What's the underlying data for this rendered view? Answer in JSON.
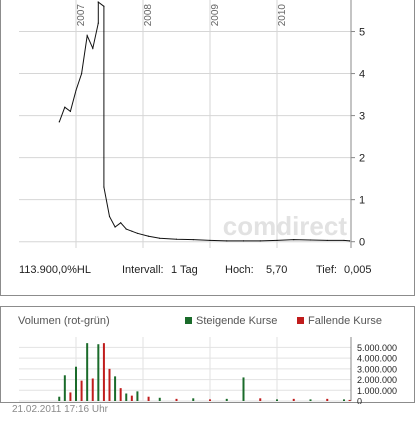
{
  "chart_data": [
    {
      "type": "line",
      "name": "price",
      "x_tick_labels": [
        "2007",
        "2008",
        "2009",
        "2010"
      ],
      "y_ticks": [
        0,
        1,
        2,
        3,
        4,
        5
      ],
      "ylim": [
        -0.15,
        5.75
      ],
      "grid": true,
      "x": [
        "2006-10",
        "2006-11",
        "2006-12",
        "2007-01",
        "2007-02",
        "2007-03",
        "2007-04",
        "2007-05",
        "2007-05",
        "2007-06",
        "2007-06",
        "2007-07",
        "2007-08",
        "2007-09",
        "2007-10",
        "2007-11",
        "2007-12",
        "2008-02",
        "2008-04",
        "2008-07",
        "2008-10",
        "2009-01",
        "2009-04",
        "2009-07",
        "2009-10",
        "2010-01",
        "2010-04",
        "2010-07",
        "2010-10",
        "2011-01",
        "2011-02"
      ],
      "values": [
        2.85,
        3.2,
        3.1,
        3.6,
        4.0,
        4.9,
        4.6,
        5.2,
        5.7,
        5.6,
        1.3,
        0.6,
        0.35,
        0.45,
        0.3,
        0.25,
        0.2,
        0.13,
        0.08,
        0.06,
        0.05,
        0.03,
        0.02,
        0.02,
        0.02,
        0.03,
        0.05,
        0.04,
        0.03,
        0.03,
        0.02
      ],
      "watermark": "comdirect"
    },
    {
      "type": "bar",
      "name": "volume",
      "title": "Volumen (rot-grün)",
      "y_ticks": [
        0,
        1000000,
        2000000,
        3000000,
        4000000,
        5000000
      ],
      "y_tick_labels": [
        "0",
        "1.000.000",
        "2.000.000",
        "3.000.000",
        "4.000.000",
        "5.000.000"
      ],
      "ylim": [
        0,
        5600000
      ],
      "series": [
        {
          "name": "Steigende Kurse",
          "color": "#1a6b2a"
        },
        {
          "name": "Fallende Kurse",
          "color": "#c01c1c"
        }
      ],
      "bars": [
        {
          "x": "2006-10",
          "v": 400000,
          "dir": "up"
        },
        {
          "x": "2006-11",
          "v": 2400000,
          "dir": "up"
        },
        {
          "x": "2006-12",
          "v": 800000,
          "dir": "down"
        },
        {
          "x": "2007-01",
          "v": 3200000,
          "dir": "up"
        },
        {
          "x": "2007-02",
          "v": 1900000,
          "dir": "down"
        },
        {
          "x": "2007-03",
          "v": 5400000,
          "dir": "up"
        },
        {
          "x": "2007-04",
          "v": 2100000,
          "dir": "down"
        },
        {
          "x": "2007-05",
          "v": 5300000,
          "dir": "up"
        },
        {
          "x": "2007-06",
          "v": 5400000,
          "dir": "down"
        },
        {
          "x": "2007-07",
          "v": 3000000,
          "dir": "down"
        },
        {
          "x": "2007-08",
          "v": 2300000,
          "dir": "up"
        },
        {
          "x": "2007-09",
          "v": 1200000,
          "dir": "down"
        },
        {
          "x": "2007-10",
          "v": 700000,
          "dir": "up"
        },
        {
          "x": "2007-11",
          "v": 500000,
          "dir": "down"
        },
        {
          "x": "2007-12",
          "v": 900000,
          "dir": "up"
        },
        {
          "x": "2008-02",
          "v": 400000,
          "dir": "down"
        },
        {
          "x": "2008-04",
          "v": 300000,
          "dir": "up"
        },
        {
          "x": "2008-07",
          "v": 200000,
          "dir": "down"
        },
        {
          "x": "2008-10",
          "v": 250000,
          "dir": "up"
        },
        {
          "x": "2009-01",
          "v": 150000,
          "dir": "down"
        },
        {
          "x": "2009-04",
          "v": 200000,
          "dir": "up"
        },
        {
          "x": "2009-07",
          "v": 2200000,
          "dir": "up"
        },
        {
          "x": "2009-10",
          "v": 250000,
          "dir": "down"
        },
        {
          "x": "2010-01",
          "v": 150000,
          "dir": "up"
        },
        {
          "x": "2010-04",
          "v": 200000,
          "dir": "down"
        },
        {
          "x": "2010-07",
          "v": 150000,
          "dir": "up"
        },
        {
          "x": "2010-10",
          "v": 200000,
          "dir": "down"
        },
        {
          "x": "2011-01",
          "v": 150000,
          "dir": "up"
        },
        {
          "x": "2011-02",
          "v": 100000,
          "dir": "down"
        }
      ]
    }
  ],
  "stats": {
    "instrument": "113.900,0%HL",
    "interval_label": "Intervall:",
    "interval_value": "1 Tag",
    "high_label": "Hoch:",
    "high_value": "5,70",
    "low_label": "Tief:",
    "low_value": "0,005"
  },
  "volume": {
    "title": "Volumen (rot-grün)",
    "legend_up": "Steigende Kurse",
    "legend_down": "Fallende Kurse",
    "color_up": "#1a6b2a",
    "color_down": "#c01c1c"
  },
  "timestamp": "21.02.2011 17:16 Uhr"
}
